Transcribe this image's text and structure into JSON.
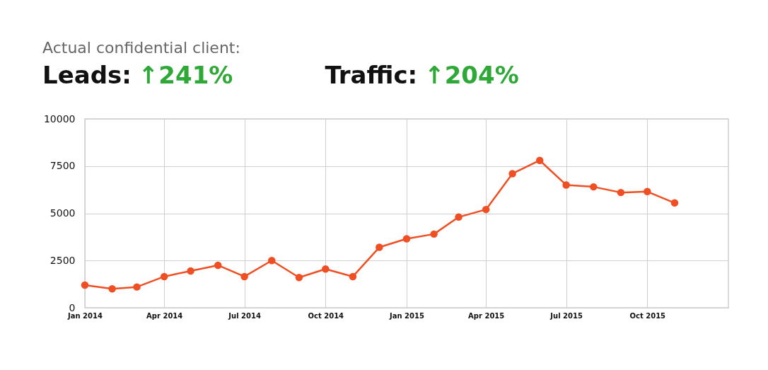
{
  "chart_data": {
    "type": "line",
    "title": "Actual confidential client:",
    "annotations": [
      "Leads:",
      "↑241%",
      "Traffic:",
      "↑204%"
    ],
    "x": [
      "2014-01",
      "2014-02",
      "2014-03",
      "2014-04",
      "2014-05",
      "2014-06",
      "2014-07",
      "2014-08",
      "2014-09",
      "2014-10",
      "2014-11",
      "2014-12",
      "2015-01",
      "2015-02",
      "2015-03",
      "2015-04",
      "2015-05",
      "2015-06",
      "2015-07",
      "2015-08",
      "2015-09",
      "2015-10",
      "2015-11"
    ],
    "series": [
      {
        "color": "#f04e23",
        "values": [
          1200,
          1000,
          1100,
          1650,
          1950,
          2250,
          1650,
          2500,
          1600,
          2050,
          1650,
          3200,
          3650,
          3900,
          4800,
          5200,
          7100,
          7800,
          6500,
          6400,
          6100,
          6150,
          5550
        ]
      }
    ],
    "xlim": [
      "2014-01",
      "2016-01"
    ],
    "xticks": [
      {
        "value": "2014-01",
        "label": "Jan 2014"
      },
      {
        "value": "2014-04",
        "label": "Apr 2014"
      },
      {
        "value": "2014-07",
        "label": "Jul 2014"
      },
      {
        "value": "2014-10",
        "label": "Oct 2014"
      },
      {
        "value": "2015-01",
        "label": "Jan 2015"
      },
      {
        "value": "2015-04",
        "label": "Apr 2015"
      },
      {
        "value": "2015-07",
        "label": "Jul 2015"
      },
      {
        "value": "2015-10",
        "label": "Oct 2015"
      }
    ],
    "ylim": [
      0,
      10000
    ],
    "yticks": [
      0,
      2500,
      5000,
      7500,
      10000
    ],
    "grid": true,
    "marker": "circle",
    "line_style": "solid"
  }
}
